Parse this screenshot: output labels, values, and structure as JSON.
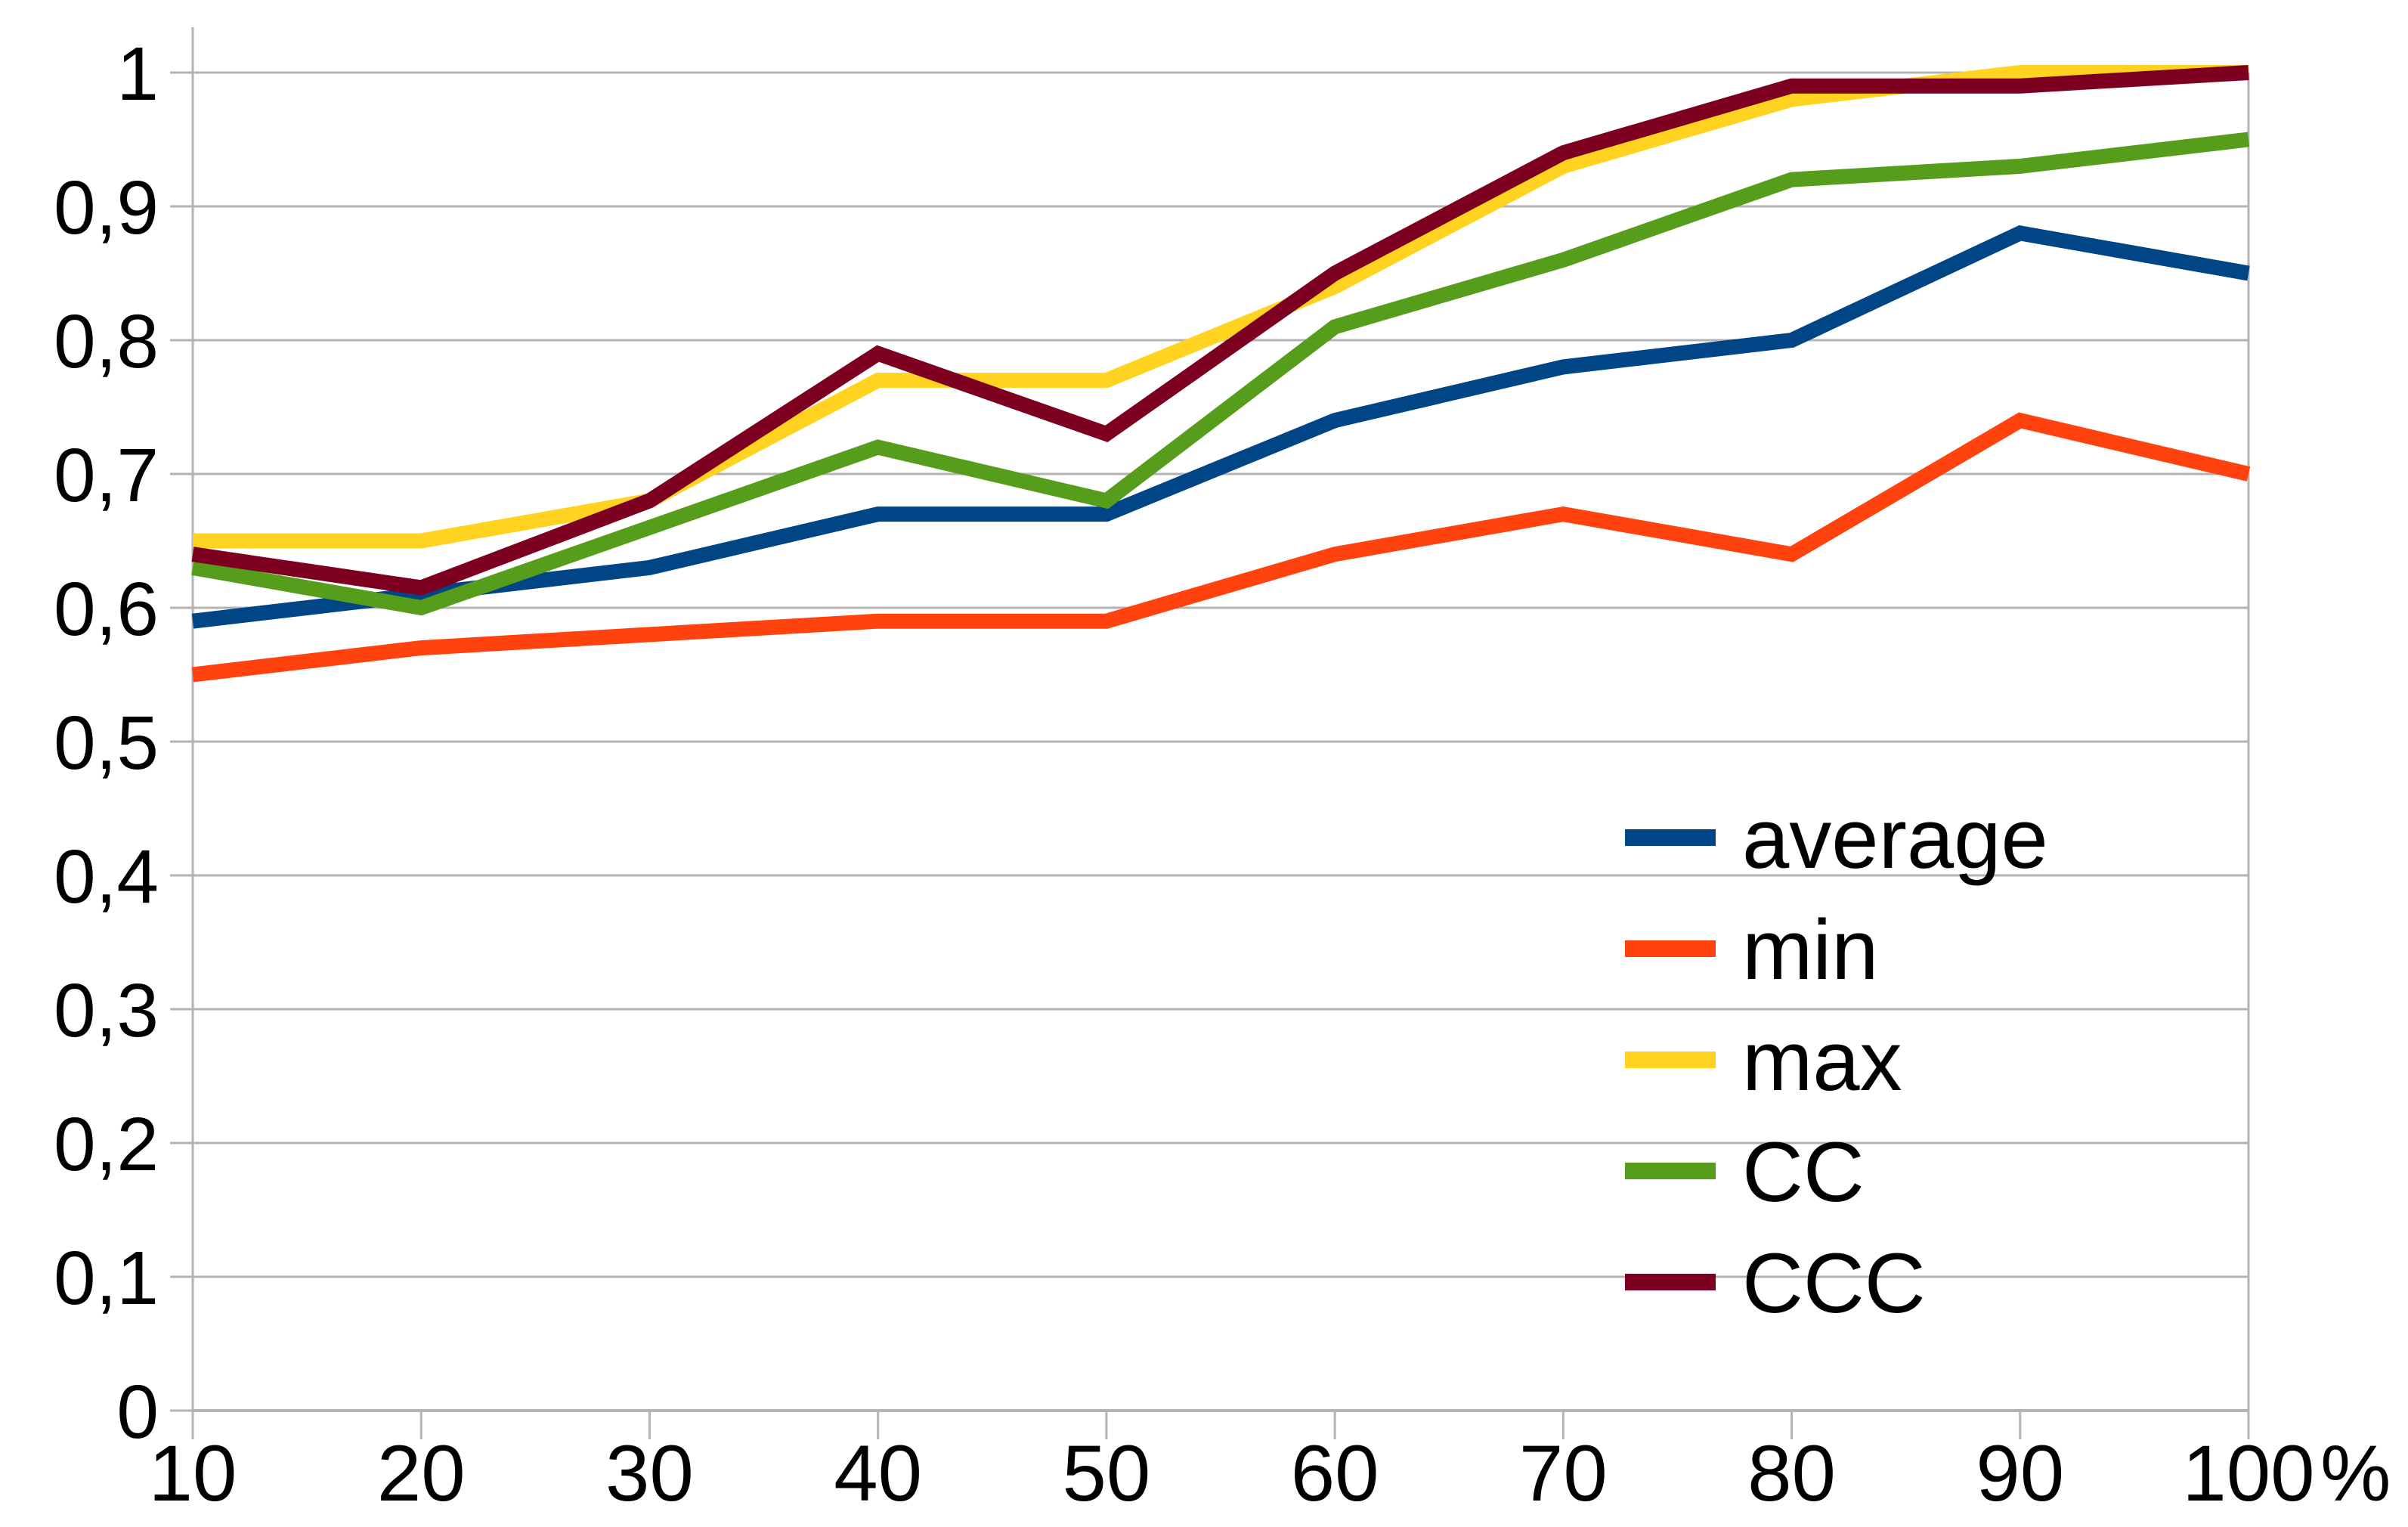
{
  "chart_data": {
    "type": "line",
    "title": "",
    "xlabel": "",
    "ylabel": "",
    "x": [
      10,
      20,
      30,
      40,
      50,
      60,
      70,
      80,
      90,
      100
    ],
    "x_tick_labels": [
      "10",
      "20",
      "30",
      "40",
      "50",
      "60",
      "70",
      "80",
      "90",
      "100"
    ],
    "x_axis_suffix": "%",
    "y_tick_labels": [
      "0",
      "0,1",
      "0,2",
      "0,3",
      "0,4",
      "0,5",
      "0,6",
      "0,7",
      "0,8",
      "0,9",
      "1"
    ],
    "y_ticks": [
      0,
      0.1,
      0.2,
      0.3,
      0.4,
      0.5,
      0.6,
      0.7,
      0.8,
      0.9,
      1
    ],
    "xlim": [
      10,
      100
    ],
    "ylim": [
      0,
      1
    ],
    "grid": "horizontal",
    "legend_position": "inside-right-lower",
    "decimal_separator": ",",
    "series": [
      {
        "name": "average",
        "color": "#004586",
        "values": [
          0.59,
          0.61,
          0.63,
          0.67,
          0.67,
          0.74,
          0.78,
          0.8,
          0.88,
          0.85
        ]
      },
      {
        "name": "min",
        "color": "#FF420E",
        "values": [
          0.55,
          0.57,
          0.58,
          0.59,
          0.59,
          0.64,
          0.67,
          0.64,
          0.74,
          0.7
        ]
      },
      {
        "name": "max",
        "color": "#FFD320",
        "values": [
          0.65,
          0.65,
          0.68,
          0.77,
          0.77,
          0.84,
          0.93,
          0.98,
          1.0,
          1.0
        ]
      },
      {
        "name": "CC",
        "color": "#579D1C",
        "values": [
          0.63,
          0.6,
          0.66,
          0.72,
          0.68,
          0.81,
          0.86,
          0.92,
          0.93,
          0.95
        ]
      },
      {
        "name": "CCC",
        "color": "#7E0021",
        "values": [
          0.64,
          0.615,
          0.68,
          0.79,
          0.73,
          0.85,
          0.94,
          0.99,
          0.99,
          1.0
        ]
      }
    ],
    "colors": {
      "background": "#ffffff",
      "grid": "#b3b3b3",
      "axis": "#b3b3b3",
      "text": "#000000"
    }
  }
}
